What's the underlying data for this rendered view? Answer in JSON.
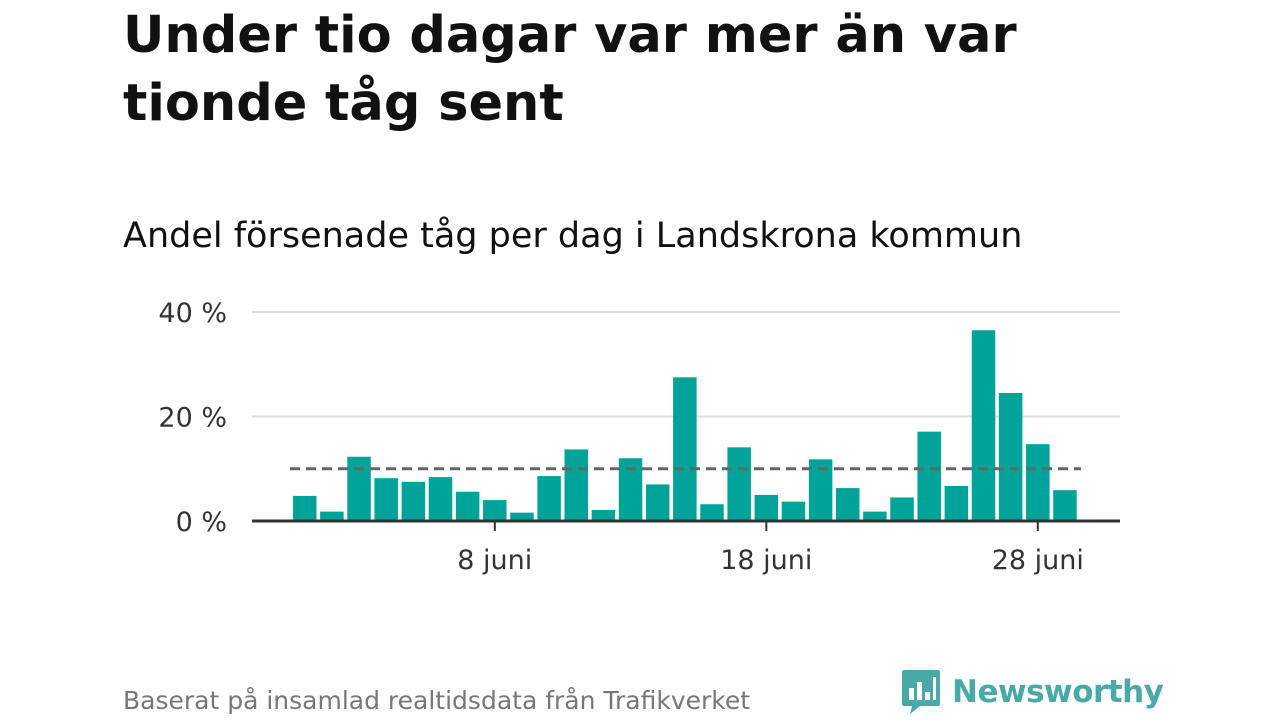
{
  "title": "Under tio dagar var mer än var tionde tåg sent",
  "subtitle": "Andel försenade tåg per dag i Landskrona kommun",
  "source": "Baserat på insamlad realtidsdata från Trafikverket",
  "brand": {
    "name": "Newsworthy",
    "icon": "bar-chart-speech-bubble-icon"
  },
  "colors": {
    "bar": "#00a398",
    "reference_line": "#666666",
    "grid": "#dddddd",
    "axis": "#333333",
    "brand": "#48a9a6"
  },
  "chart_data": {
    "type": "bar",
    "x_unit": "day of June",
    "x": [
      1,
      2,
      3,
      4,
      5,
      6,
      7,
      8,
      9,
      10,
      11,
      12,
      13,
      14,
      15,
      16,
      17,
      18,
      19,
      20,
      21,
      22,
      23,
      24,
      25,
      26,
      27,
      28,
      29
    ],
    "values": [
      4.8,
      1.8,
      12.3,
      8.2,
      7.5,
      8.4,
      5.6,
      4.0,
      1.6,
      8.6,
      13.7,
      2.1,
      12.0,
      7.0,
      27.5,
      3.2,
      14.1,
      5.0,
      3.7,
      11.8,
      6.3,
      1.8,
      4.5,
      17.1,
      6.7,
      36.5,
      24.5,
      14.7,
      5.9
    ],
    "reference_line": 10,
    "yticks": [
      0,
      20,
      40
    ],
    "ytick_labels": [
      "0 %",
      "20 %",
      "40 %"
    ],
    "xticks": [
      8,
      18,
      28
    ],
    "xtick_labels": [
      "8 juni",
      "18 juni",
      "28 juni"
    ],
    "ylim": [
      0,
      40
    ],
    "grid": true
  }
}
